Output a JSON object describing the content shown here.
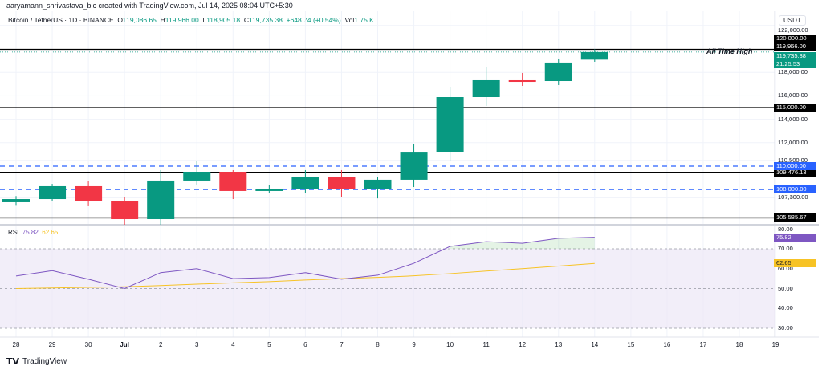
{
  "credit": "aaryamann_shrivastava_bic created with TradingView.com, Jul 14, 2025 08:04 UTC+5:30",
  "legend": {
    "symbol": "Bitcoin / TetherUS · 1D · BINANCE",
    "open_label": "O",
    "open": "119,086.65",
    "high_label": "H",
    "high": "119,966.00",
    "low_label": "L",
    "low": "118,905.18",
    "close_label": "C",
    "close": "119,735.38",
    "change": "+648.74 (+0.54%)",
    "vol_label": "Vol",
    "vol": "1.75 K"
  },
  "currency": "USDT",
  "annotation": "All Time High",
  "colors": {
    "up": "#089981",
    "down": "#f23645",
    "level_blue": "#2962ff",
    "rsi": "#7e57c2",
    "rsi_ma": "#f7c325",
    "rsi_band": "#ede7f6"
  },
  "price_ticks": [
    "122,000.00",
    "118,000.00",
    "116,000.00",
    "114,000.00",
    "112,000.00",
    "110,500.00",
    "107,300.00"
  ],
  "price_tick_values": [
    122000,
    118000,
    116000,
    114000,
    112000,
    110500,
    107300
  ],
  "levels": [
    {
      "value": 119966,
      "label": "119,966.00",
      "style": "black"
    },
    {
      "value": 115000,
      "label": "115,000.00",
      "style": "black"
    },
    {
      "value": 109476.13,
      "label": "109,476.13",
      "style": "black"
    },
    {
      "value": 105585.67,
      "label": "105,585.67",
      "style": "black"
    },
    {
      "value": 110000,
      "label": "110,000.00",
      "style": "blue-dashed"
    },
    {
      "value": 108000,
      "label": "108,000.00",
      "style": "blue-dashed"
    }
  ],
  "level_120k_label": "120,000.00",
  "current_price": {
    "label": "119,735.38",
    "countdown": "21:25:53"
  },
  "rsi": {
    "title": "RSI",
    "value": "75.82",
    "ma_value": "62.65",
    "ticks": [
      "80.00",
      "70.00",
      "60.00",
      "50.00",
      "40.00",
      "30.00"
    ],
    "tick_values": [
      80,
      70,
      60,
      50,
      40,
      30
    ],
    "values": [
      56.3,
      59,
      54.7,
      50,
      58,
      60,
      55,
      55.5,
      58,
      54.7,
      56.7,
      62.7,
      71.2,
      73.6,
      72.8,
      75.3,
      75.82
    ],
    "ma": [
      50.0,
      50.3,
      50.6,
      50.9,
      51.5,
      52.2,
      52.9,
      53.5,
      54.3,
      55.0,
      55.6,
      56.4,
      57.5,
      58.8,
      60.0,
      61.3,
      62.65
    ]
  },
  "x_labels": [
    "28",
    "29",
    "30",
    "Jul",
    "2",
    "3",
    "4",
    "5",
    "6",
    "7",
    "8",
    "9",
    "10",
    "11",
    "12",
    "13",
    "14",
    "15",
    "16",
    "17",
    "18",
    "19"
  ],
  "chart_data": {
    "type": "candlestick",
    "categories": [
      "Jun 28",
      "Jun 29",
      "Jun 30",
      "Jul 1",
      "Jul 2",
      "Jul 3",
      "Jul 4",
      "Jul 5",
      "Jul 6",
      "Jul 7",
      "Jul 8",
      "Jul 9",
      "Jul 10",
      "Jul 11",
      "Jul 12",
      "Jul 13",
      "Jul 14"
    ],
    "candles": [
      {
        "o": 106920,
        "h": 107450,
        "l": 106620,
        "c": 107190
      },
      {
        "o": 107190,
        "h": 108490,
        "l": 106990,
        "c": 108290
      },
      {
        "o": 108290,
        "h": 108700,
        "l": 106580,
        "c": 106990
      },
      {
        "o": 107050,
        "h": 107390,
        "l": 105000,
        "c": 105480
      },
      {
        "o": 105480,
        "h": 109660,
        "l": 105000,
        "c": 108770
      },
      {
        "o": 108770,
        "h": 110480,
        "l": 108430,
        "c": 109520
      },
      {
        "o": 109520,
        "h": 109660,
        "l": 107190,
        "c": 107880
      },
      {
        "o": 107880,
        "h": 108360,
        "l": 107670,
        "c": 108080
      },
      {
        "o": 108080,
        "h": 109660,
        "l": 107730,
        "c": 109110
      },
      {
        "o": 109110,
        "h": 109660,
        "l": 107390,
        "c": 108080
      },
      {
        "o": 108080,
        "h": 109040,
        "l": 107250,
        "c": 108840
      },
      {
        "o": 108840,
        "h": 111850,
        "l": 108220,
        "c": 111160
      },
      {
        "o": 111230,
        "h": 116710,
        "l": 110480,
        "c": 115890
      },
      {
        "o": 115890,
        "h": 118490,
        "l": 115140,
        "c": 117330
      },
      {
        "o": 117330,
        "h": 117950,
        "l": 116850,
        "c": 117190
      },
      {
        "o": 117260,
        "h": 119180,
        "l": 116920,
        "c": 118840
      },
      {
        "o": 119086.65,
        "h": 119966,
        "l": 118905.18,
        "c": 119735.38
      }
    ],
    "ylim": [
      104500,
      122500
    ],
    "grid": true
  }
}
